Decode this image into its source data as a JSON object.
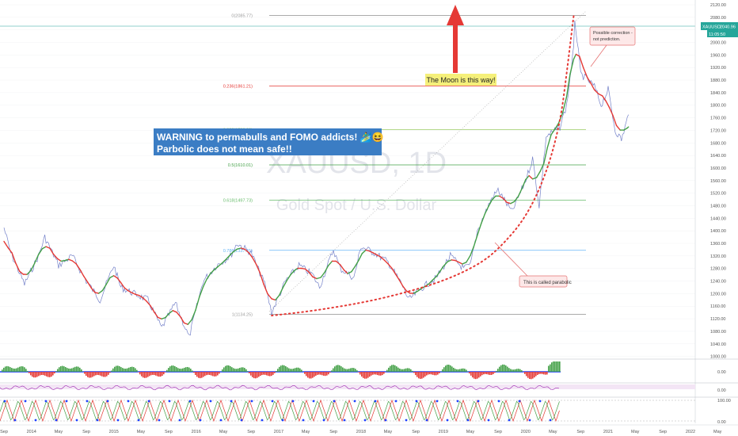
{
  "chart_data": {
    "type": "line",
    "watermark": {
      "symbol": "XAUUSD, 1D",
      "name": "Gold Spot / U.S. Dollar"
    },
    "price_axis": {
      "ticks": [
        1000,
        1040,
        1080,
        1120,
        1160,
        1200,
        1240,
        1280,
        1320,
        1360,
        1400,
        1440,
        1480,
        1520,
        1560,
        1600,
        1640,
        1680,
        1720,
        1760,
        1800,
        1840,
        1880,
        1920,
        1960,
        2000,
        2040,
        2080,
        2120
      ],
      "tick_labels": [
        "1000.00",
        "1040.00",
        "1080.00",
        "1120.00",
        "1160.00",
        "1200.00",
        "1240.00",
        "1280.00",
        "1320.00",
        "1360.00",
        "1400.00",
        "1440.00",
        "1480.00",
        "1520.00",
        "1560.00",
        "1600.00",
        "1640.00",
        "1680.00",
        "1720.00",
        "1760.00",
        "1800.00",
        "1840.00",
        "1880.00",
        "1920.00",
        "1960.00",
        "2000.00",
        "2040.00",
        "2080.00",
        "2120.00"
      ],
      "ylim": [
        994,
        2120
      ]
    },
    "time_axis": {
      "labels": [
        "Sep",
        "2014",
        "May",
        "Sep",
        "2015",
        "May",
        "Sep",
        "2016",
        "May",
        "Sep",
        "2017",
        "May",
        "Sep",
        "2018",
        "May",
        "Sep",
        "2019",
        "May",
        "Sep",
        "2020",
        "May",
        "Sep",
        "2021",
        "May",
        "Sep",
        "2022",
        "May"
      ],
      "dates": [
        "2013-09",
        "2014-01",
        "2014-05",
        "2014-09",
        "2015-01",
        "2015-05",
        "2015-09",
        "2016-01",
        "2016-05",
        "2016-09",
        "2017-01",
        "2017-05",
        "2017-09",
        "2018-01",
        "2018-05",
        "2018-09",
        "2019-01",
        "2019-05",
        "2019-09",
        "2020-01",
        "2020-05",
        "2020-09",
        "2021-01",
        "2021-05",
        "2021-09",
        "2022-01",
        "2022-05"
      ]
    },
    "price_series": {
      "name": "XAUUSD",
      "dates": [
        "2013-09",
        "2013-10",
        "2013-12",
        "2014-02",
        "2014-03",
        "2014-05",
        "2014-07",
        "2014-09",
        "2014-11",
        "2015-01",
        "2015-02",
        "2015-04",
        "2015-06",
        "2015-08",
        "2015-10",
        "2015-12",
        "2016-02",
        "2016-04",
        "2016-06",
        "2016-07",
        "2016-09",
        "2016-11",
        "2016-12",
        "2017-02",
        "2017-04",
        "2017-06",
        "2017-07",
        "2017-09",
        "2017-10",
        "2017-12",
        "2018-01",
        "2018-03",
        "2018-05",
        "2018-07",
        "2018-08",
        "2018-10",
        "2018-12",
        "2019-02",
        "2019-04",
        "2019-05",
        "2019-06",
        "2019-08",
        "2019-09",
        "2019-11",
        "2020-01",
        "2020-02",
        "2020-03",
        "2020-04",
        "2020-06",
        "2020-07",
        "2020-08",
        "2020-08-06",
        "2020-09",
        "2020-10",
        "2020-11",
        "2020-12",
        "2021-01",
        "2021-02",
        "2021-03",
        "2021-04"
      ],
      "values": [
        1410,
        1330,
        1230,
        1320,
        1380,
        1290,
        1320,
        1240,
        1180,
        1290,
        1220,
        1200,
        1180,
        1090,
        1170,
        1060,
        1240,
        1290,
        1320,
        1360,
        1330,
        1230,
        1140,
        1240,
        1290,
        1260,
        1220,
        1340,
        1280,
        1250,
        1350,
        1330,
        1300,
        1230,
        1180,
        1220,
        1250,
        1320,
        1280,
        1290,
        1400,
        1500,
        1530,
        1460,
        1560,
        1630,
        1480,
        1700,
        1730,
        1800,
        1980,
        2075,
        1900,
        1880,
        1860,
        1800,
        1850,
        1720,
        1690,
        1770
      ]
    },
    "fibonacci": {
      "levels": [
        {
          "label": "0(2085.77)",
          "value": 2085.77,
          "color": "#9e9e9e"
        },
        {
          "label": "0.236(1861.21)",
          "value": 1861.21,
          "color": "#e53935"
        },
        {
          "label": "0.382(1722.29)",
          "value": 1722.29,
          "color": "#9ccc65"
        },
        {
          "label": "0.5(1610.01)",
          "value": 1610.01,
          "color": "#43a047"
        },
        {
          "label": "0.618(1497.73)",
          "value": 1497.73,
          "color": "#66bb6a"
        },
        {
          "label": "0.786(1337.91)",
          "value": 1337.91,
          "color": "#64b5f6"
        },
        {
          "label": "1(1134.25)",
          "value": 1134.25,
          "color": "#9e9e9e"
        }
      ]
    },
    "parabolic_curve": {
      "dates": [
        "2016-12",
        "2017-06",
        "2018-01",
        "2018-07",
        "2019-01",
        "2019-06",
        "2019-09",
        "2020-01",
        "2020-04",
        "2020-06",
        "2020-07",
        "2020-08"
      ],
      "values": [
        1130,
        1145,
        1170,
        1200,
        1240,
        1290,
        1340,
        1440,
        1580,
        1740,
        1900,
        2085
      ],
      "color": "#e53935"
    },
    "current_price": {
      "symbol": "XAUUSD",
      "value": 2040.96,
      "value_label": "2040.96",
      "countdown": "11:05:50",
      "color": "#26a69a"
    },
    "annotations": {
      "warning_lines": [
        "WARNING to permabulls and FOMO addicts! 🏄‍♂️😆",
        "Parbolic does not mean safe!!"
      ],
      "moon": "The Moon is this way!",
      "parabolic_callout": "This is called parabolic",
      "correction_lines": [
        "Possible correction -",
        "not prediction."
      ]
    },
    "oscillator_panels": [
      {
        "type": "histogram",
        "axis_labels": [
          "0.00"
        ],
        "colors": [
          "#43a047",
          "#e53935",
          "#1e40ff"
        ]
      },
      {
        "type": "line",
        "axis_labels": [
          "0.00"
        ],
        "color": "#9c27b0"
      },
      {
        "type": "stochastic",
        "axis_labels": [
          "100.00",
          "0.00"
        ],
        "colors": [
          "#e53935",
          "#43a047",
          "#1e40ff"
        ]
      }
    ],
    "colors": {
      "up": "#43a047",
      "down": "#e53935",
      "candle": "#5c6bc0",
      "highlight_bg": "#f5f07a",
      "warning_bg": "#3b7dc4"
    }
  }
}
